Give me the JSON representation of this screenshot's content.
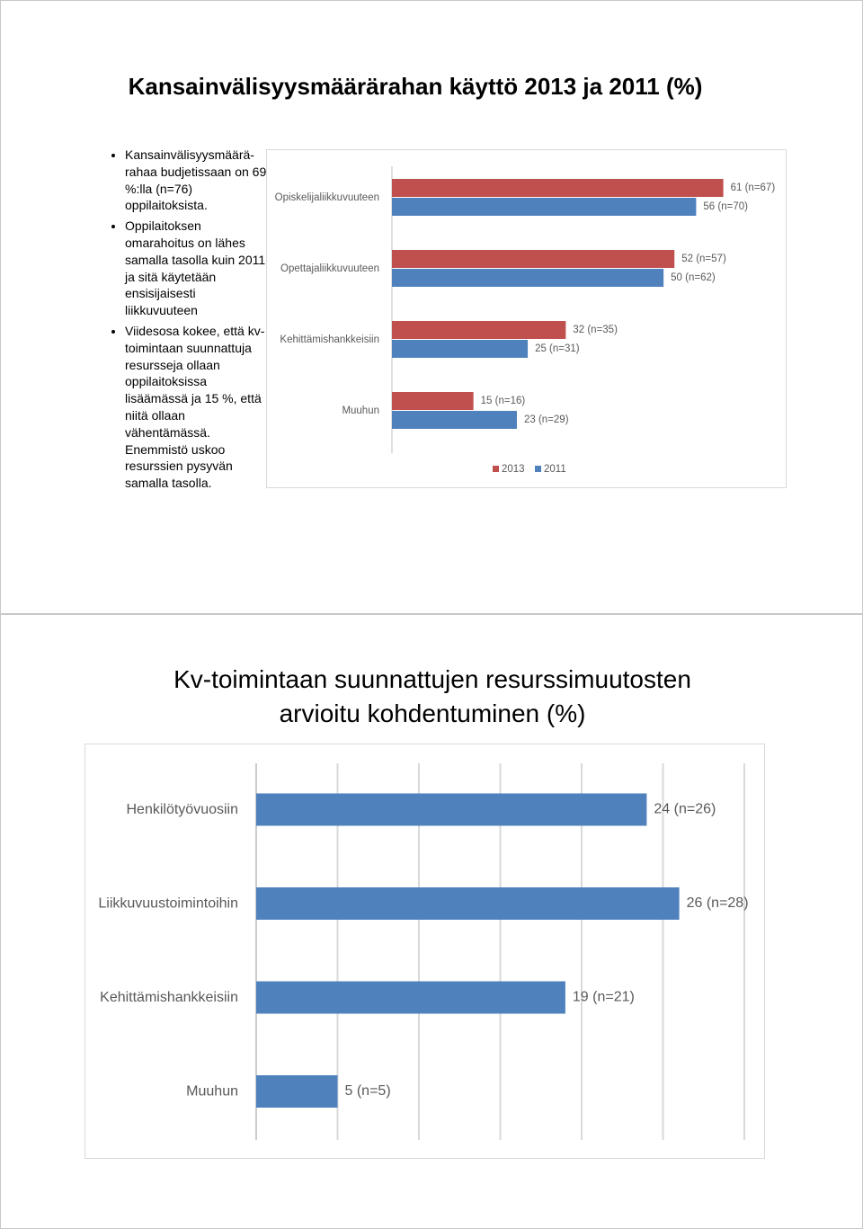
{
  "slides": [
    {
      "title": "Kansainvälisyysmäärärahan käyttö 2013 ja 2011 (%)",
      "bullets": [
        "Kansainvälisyysmäärä­rahaa budjetissaan on 69 %:lla (n=76) oppilaitoksista.",
        "Oppilaitoksen omarahoitus on lähes samalla tasolla kuin 2011 ja sitä käytetään ensisijaisesti liikkuvuuteen",
        "Viidesosa kokee, että kv-toimintaan suunnattuja resursseja ollaan oppilaitoksissa lisäämässä ja 15 %, että niitä ollaan vähentämässä. Enemmistö uskoo resurssien pysyvän samalla tasolla."
      ]
    },
    {
      "title": "Kv-toimintaan suunnattujen resurssimuutosten arvioitu kohdentuminen (%)"
    }
  ],
  "chart_data": [
    {
      "type": "hbar",
      "categories": [
        "Opiskelijaliikkuvuuteen",
        "Opettajaliikkuvuuteen",
        "Kehittämishankkeisiin",
        "Muuhun"
      ],
      "series": [
        {
          "name": "2013",
          "color": "#c0504d",
          "values": [
            61,
            52,
            32,
            15
          ],
          "value_labels": [
            "61 (n=67)",
            "52 (n=57)",
            "32 (n=35)",
            "15 (n=16)"
          ]
        },
        {
          "name": "2011",
          "color": "#4f81bd",
          "values": [
            56,
            50,
            25,
            23
          ],
          "value_labels": [
            "56 (n=70)",
            "50 (n=62)",
            "25 (n=31)",
            "23 (n=29)"
          ]
        }
      ],
      "xlim": [
        0,
        70
      ],
      "legend": "bottom"
    },
    {
      "type": "hbar",
      "categories": [
        "Henkilötyövuosiin",
        "Liikkuvuustoimintoihin",
        "Kehittämishankkeisiin",
        "Muuhun"
      ],
      "values": [
        24,
        26,
        19,
        5
      ],
      "value_labels": [
        "24 (n=26)",
        "26 (n=28)",
        "19 (n=21)",
        "5 (n=5)"
      ],
      "color": "#4f81bd",
      "xlim": [
        0,
        30
      ],
      "xticks": [
        0,
        5,
        10,
        15,
        20,
        25,
        30
      ],
      "grid": true
    }
  ]
}
